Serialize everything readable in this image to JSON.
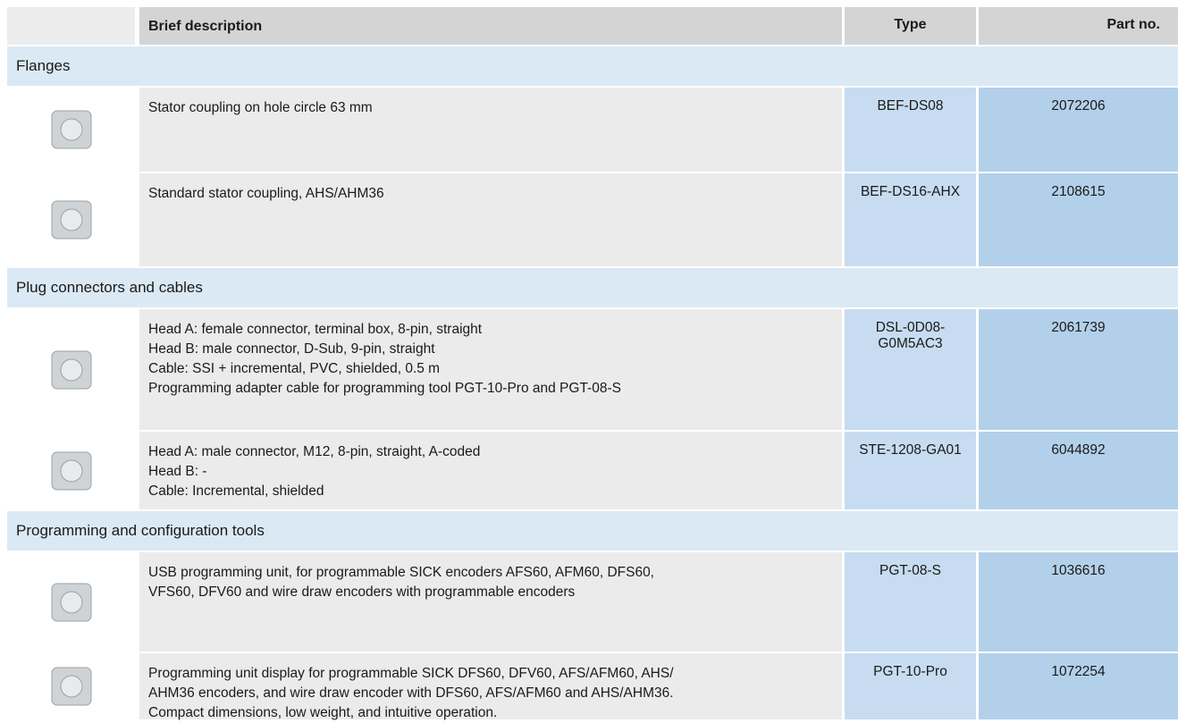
{
  "header": {
    "description": "Brief description",
    "type": "Type",
    "part_no": "Part no."
  },
  "sections": [
    {
      "title": "Flanges",
      "rows": [
        {
          "description": [
            "Stator coupling on hole circle 63 mm"
          ],
          "type": "BEF-DS08",
          "part_no": "2072206"
        },
        {
          "description": [
            "Standard stator coupling, AHS/AHM36"
          ],
          "type": "BEF-DS16-AHX",
          "part_no": "2108615"
        }
      ]
    },
    {
      "title": "Plug connectors and cables",
      "rows": [
        {
          "description": [
            "Head A: female connector, terminal box, 8-pin, straight",
            "Head B: male connector, D-Sub, 9-pin, straight",
            "Cable: SSI + incremental, PVC, shielded, 0.5 m",
            "Programming adapter cable for programming tool PGT-10-Pro and PGT-08-S"
          ],
          "type": "DSL-0D08-G0M5AC3",
          "part_no": "2061739"
        },
        {
          "description": [
            "Head A: male connector, M12, 8-pin, straight, A-coded",
            "Head B: -",
            "Cable: Incremental, shielded"
          ],
          "type": "STE-1208-GA01",
          "part_no": "6044892"
        }
      ]
    },
    {
      "title": "Programming and configuration tools",
      "rows": [
        {
          "description": [
            "USB programming unit, for programmable SICK encoders AFS60, AFM60, DFS60,",
            "VFS60, DFV60 and wire draw encoders with programmable encoders"
          ],
          "type": "PGT-08-S",
          "part_no": "1036616"
        },
        {
          "description": [
            "Programming unit display for programmable SICK DFS60, DFV60, AFS/AFM60, AHS/",
            "AHM36 encoders, and wire draw encoder with DFS60, AFS/AFM60 and AHS/AHM36.",
            "Compact dimensions, low weight, and intuitive operation."
          ],
          "type": "PGT-10-Pro",
          "part_no": "1072254"
        }
      ]
    }
  ]
}
